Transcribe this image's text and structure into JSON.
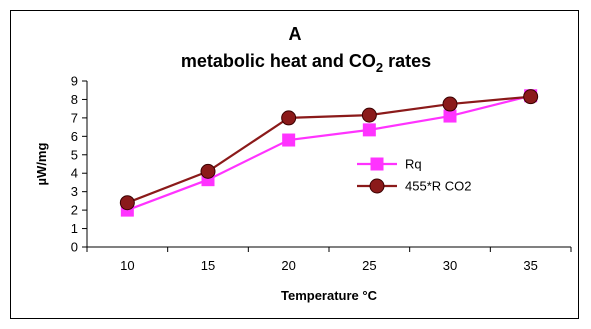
{
  "chart_data": {
    "type": "line",
    "title": "A",
    "subtitle_prefix": "metabolic heat and CO",
    "subtitle_sub": "2",
    "subtitle_suffix": " rates",
    "xlabel": "Temperature °C",
    "ylabel": "µW/mg",
    "categories": [
      "10",
      "15",
      "20",
      "25",
      "30",
      "35"
    ],
    "ylim": [
      0,
      9
    ],
    "yticks": [
      0,
      1,
      2,
      3,
      4,
      5,
      6,
      7,
      8,
      9
    ],
    "grid": false,
    "legend_position": "right",
    "series": [
      {
        "name": "Rq",
        "values": [
          2.0,
          3.65,
          5.8,
          6.35,
          7.1,
          8.2
        ],
        "color": "#ff33ff",
        "marker": "square"
      },
      {
        "name": "455*R CO2",
        "values": [
          2.4,
          4.1,
          7.0,
          7.15,
          7.75,
          8.15
        ],
        "color": "#8b1a1a",
        "marker": "circle"
      }
    ]
  }
}
